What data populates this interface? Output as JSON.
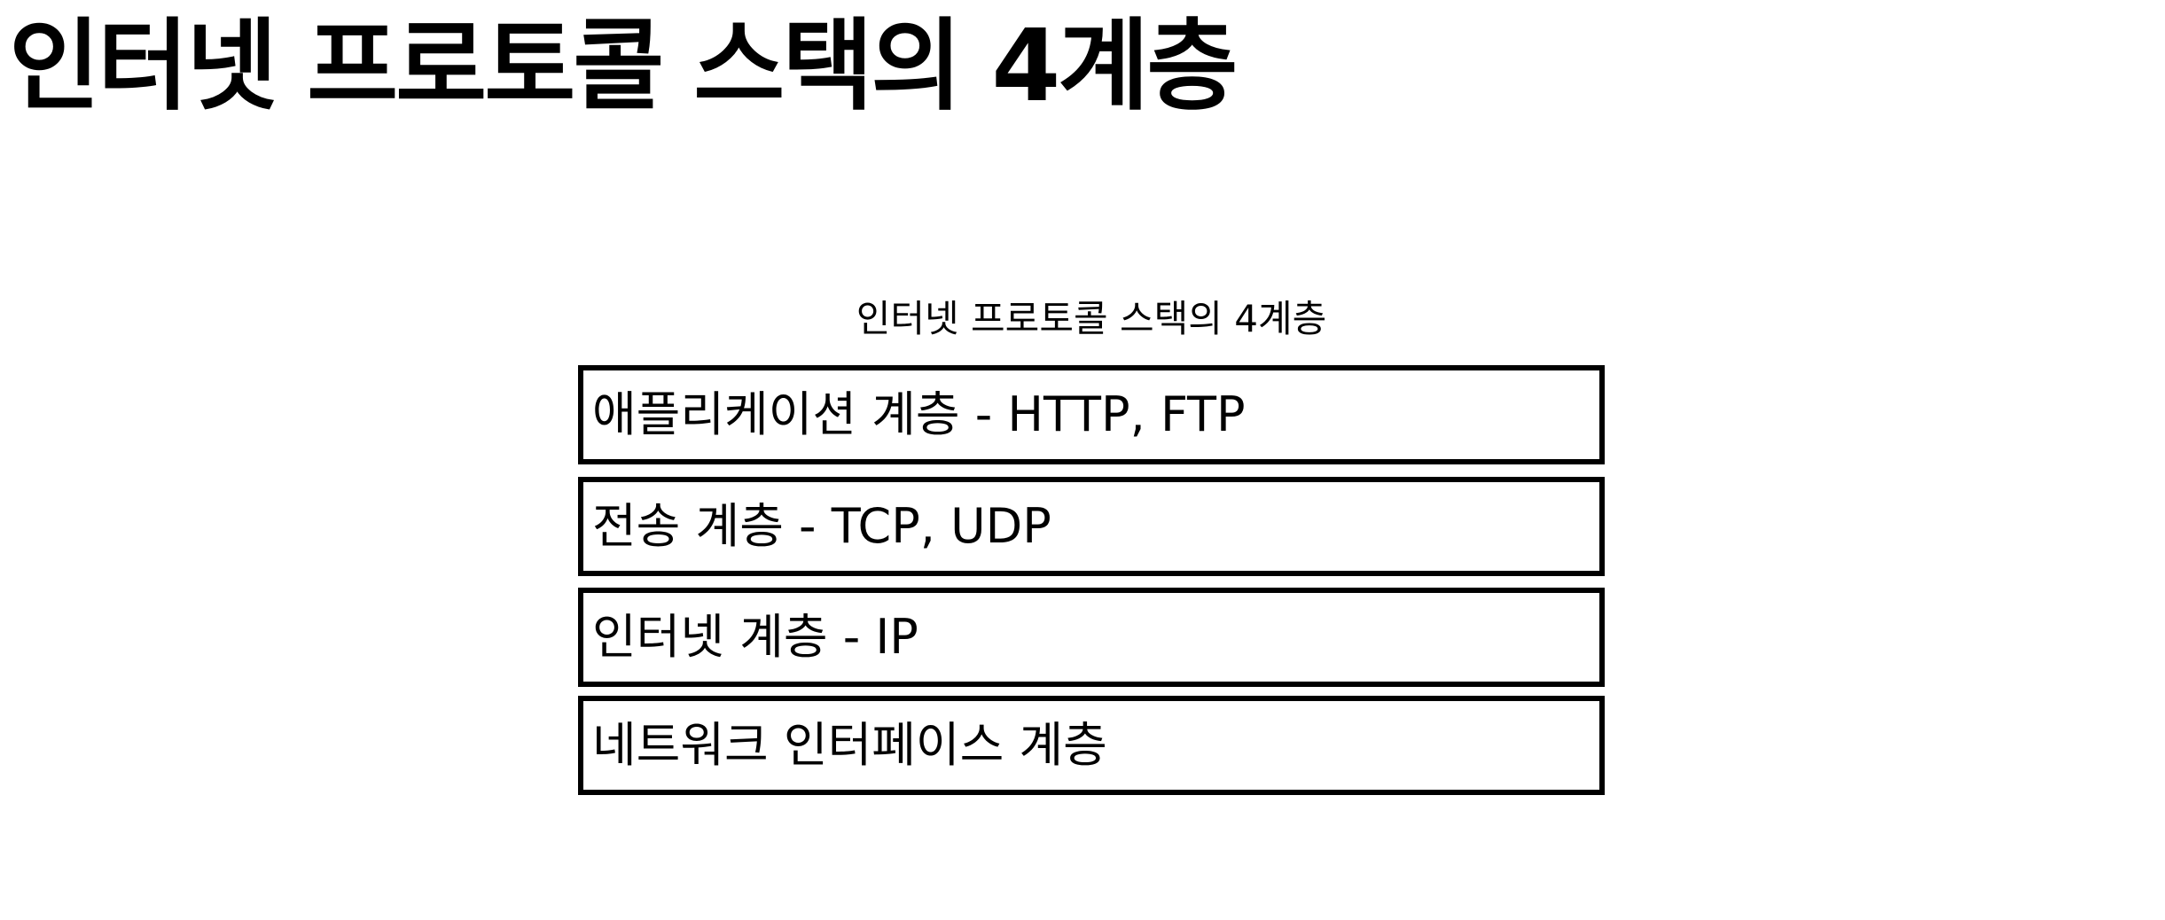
{
  "page": {
    "title": "인터넷 프로토콜 스택의 4계층"
  },
  "diagram": {
    "title": "인터넷 프로토콜 스택의 4계층",
    "layers": [
      {
        "label": "애플리케이션 계층 - HTTP, FTP"
      },
      {
        "label": "전송 계층 - TCP, UDP"
      },
      {
        "label": "인터넷 계층 - IP"
      },
      {
        "label": "네트워크 인터페이스 계층"
      }
    ]
  },
  "colors": {
    "background": "#ffffff",
    "text": "#000000",
    "border": "#000000"
  }
}
